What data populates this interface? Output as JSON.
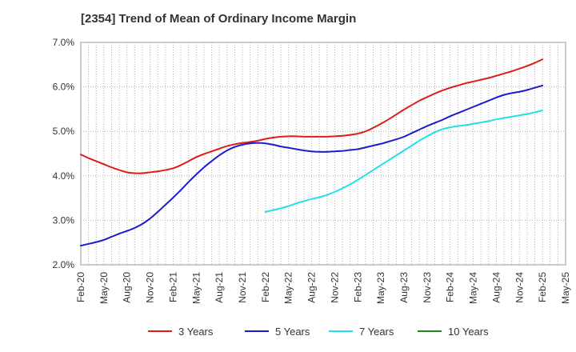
{
  "chart_data": {
    "type": "line",
    "title": "[2354]  Trend of Mean of Ordinary Income Margin",
    "xlabel": "",
    "ylabel": "",
    "ylim": [
      2.0,
      7.0
    ],
    "y_ticks": [
      "2.0%",
      "3.0%",
      "4.0%",
      "5.0%",
      "6.0%",
      "7.0%"
    ],
    "x_ticks": [
      "Feb-20",
      "May-20",
      "Aug-20",
      "Nov-20",
      "Feb-21",
      "May-21",
      "Aug-21",
      "Nov-21",
      "Feb-22",
      "May-22",
      "Aug-22",
      "Nov-22",
      "Feb-23",
      "May-23",
      "Aug-23",
      "Nov-23",
      "Feb-24",
      "May-24",
      "Aug-24",
      "Nov-24",
      "Feb-25",
      "May-25"
    ],
    "grid": true,
    "legend_position": "bottom",
    "series": [
      {
        "name": "3 Years",
        "color": "#dd1c1c",
        "points": [
          [
            "Feb-20",
            4.48
          ],
          [
            "Mar-20",
            4.4
          ],
          [
            "Apr-20",
            4.33
          ],
          [
            "May-20",
            4.26
          ],
          [
            "Jun-20",
            4.19
          ],
          [
            "Jul-20",
            4.13
          ],
          [
            "Aug-20",
            4.08
          ],
          [
            "Sep-20",
            4.06
          ],
          [
            "Oct-20",
            4.06
          ],
          [
            "Nov-20",
            4.08
          ],
          [
            "Dec-20",
            4.1
          ],
          [
            "Jan-21",
            4.13
          ],
          [
            "Feb-21",
            4.17
          ],
          [
            "Mar-21",
            4.24
          ],
          [
            "Apr-21",
            4.33
          ],
          [
            "May-21",
            4.42
          ],
          [
            "Jun-21",
            4.49
          ],
          [
            "Jul-21",
            4.55
          ],
          [
            "Aug-21",
            4.61
          ],
          [
            "Sep-21",
            4.67
          ],
          [
            "Oct-21",
            4.71
          ],
          [
            "Nov-21",
            4.74
          ],
          [
            "Dec-21",
            4.76
          ],
          [
            "Jan-22",
            4.79
          ],
          [
            "Feb-22",
            4.83
          ],
          [
            "Mar-22",
            4.86
          ],
          [
            "Apr-22",
            4.88
          ],
          [
            "May-22",
            4.89
          ],
          [
            "Jun-22",
            4.89
          ],
          [
            "Jul-22",
            4.88
          ],
          [
            "Aug-22",
            4.88
          ],
          [
            "Sep-22",
            4.88
          ],
          [
            "Oct-22",
            4.88
          ],
          [
            "Nov-22",
            4.89
          ],
          [
            "Dec-22",
            4.9
          ],
          [
            "Jan-23",
            4.92
          ],
          [
            "Feb-23",
            4.95
          ],
          [
            "Mar-23",
            5.0
          ],
          [
            "Apr-23",
            5.08
          ],
          [
            "May-23",
            5.17
          ],
          [
            "Jun-23",
            5.27
          ],
          [
            "Jul-23",
            5.38
          ],
          [
            "Aug-23",
            5.49
          ],
          [
            "Sep-23",
            5.59
          ],
          [
            "Oct-23",
            5.69
          ],
          [
            "Nov-23",
            5.77
          ],
          [
            "Dec-23",
            5.85
          ],
          [
            "Jan-24",
            5.92
          ],
          [
            "Feb-24",
            5.98
          ],
          [
            "Mar-24",
            6.03
          ],
          [
            "Apr-24",
            6.08
          ],
          [
            "May-24",
            6.12
          ],
          [
            "Jun-24",
            6.16
          ],
          [
            "Jul-24",
            6.2
          ],
          [
            "Aug-24",
            6.25
          ],
          [
            "Sep-24",
            6.3
          ],
          [
            "Oct-24",
            6.35
          ],
          [
            "Nov-24",
            6.41
          ],
          [
            "Dec-24",
            6.47
          ],
          [
            "Jan-25",
            6.54
          ],
          [
            "Feb-25",
            6.62
          ]
        ]
      },
      {
        "name": "5 Years",
        "color": "#1c1ccc",
        "points": [
          [
            "Feb-20",
            2.43
          ],
          [
            "Mar-20",
            2.47
          ],
          [
            "Apr-20",
            2.51
          ],
          [
            "May-20",
            2.56
          ],
          [
            "Jun-20",
            2.63
          ],
          [
            "Jul-20",
            2.7
          ],
          [
            "Aug-20",
            2.76
          ],
          [
            "Sep-20",
            2.83
          ],
          [
            "Oct-20",
            2.92
          ],
          [
            "Nov-20",
            3.04
          ],
          [
            "Dec-20",
            3.19
          ],
          [
            "Jan-21",
            3.35
          ],
          [
            "Feb-21",
            3.51
          ],
          [
            "Mar-21",
            3.68
          ],
          [
            "Apr-21",
            3.86
          ],
          [
            "May-21",
            4.03
          ],
          [
            "Jun-21",
            4.19
          ],
          [
            "Jul-21",
            4.33
          ],
          [
            "Aug-21",
            4.46
          ],
          [
            "Sep-21",
            4.57
          ],
          [
            "Oct-21",
            4.65
          ],
          [
            "Nov-21",
            4.7
          ],
          [
            "Dec-21",
            4.73
          ],
          [
            "Jan-22",
            4.74
          ],
          [
            "Feb-22",
            4.73
          ],
          [
            "Mar-22",
            4.7
          ],
          [
            "Apr-22",
            4.66
          ],
          [
            "May-22",
            4.63
          ],
          [
            "Jun-22",
            4.6
          ],
          [
            "Jul-22",
            4.57
          ],
          [
            "Aug-22",
            4.55
          ],
          [
            "Sep-22",
            4.54
          ],
          [
            "Oct-22",
            4.54
          ],
          [
            "Nov-22",
            4.55
          ],
          [
            "Dec-22",
            4.56
          ],
          [
            "Jan-23",
            4.58
          ],
          [
            "Feb-23",
            4.6
          ],
          [
            "Mar-23",
            4.64
          ],
          [
            "Apr-23",
            4.68
          ],
          [
            "May-23",
            4.72
          ],
          [
            "Jun-23",
            4.77
          ],
          [
            "Jul-23",
            4.82
          ],
          [
            "Aug-23",
            4.88
          ],
          [
            "Sep-23",
            4.96
          ],
          [
            "Oct-23",
            5.04
          ],
          [
            "Nov-23",
            5.12
          ],
          [
            "Dec-23",
            5.19
          ],
          [
            "Jan-24",
            5.26
          ],
          [
            "Feb-24",
            5.34
          ],
          [
            "Mar-24",
            5.41
          ],
          [
            "Apr-24",
            5.48
          ],
          [
            "May-24",
            5.55
          ],
          [
            "Jun-24",
            5.62
          ],
          [
            "Jul-24",
            5.69
          ],
          [
            "Aug-24",
            5.76
          ],
          [
            "Sep-24",
            5.82
          ],
          [
            "Oct-24",
            5.86
          ],
          [
            "Nov-24",
            5.89
          ],
          [
            "Dec-24",
            5.93
          ],
          [
            "Jan-25",
            5.98
          ],
          [
            "Feb-25",
            6.03
          ]
        ]
      },
      {
        "name": "7 Years",
        "color": "#22e0e8",
        "points": [
          [
            "Feb-22",
            3.19
          ],
          [
            "Mar-22",
            3.23
          ],
          [
            "Apr-22",
            3.27
          ],
          [
            "May-22",
            3.32
          ],
          [
            "Jun-22",
            3.38
          ],
          [
            "Jul-22",
            3.43
          ],
          [
            "Aug-22",
            3.48
          ],
          [
            "Sep-22",
            3.52
          ],
          [
            "Oct-22",
            3.57
          ],
          [
            "Nov-22",
            3.64
          ],
          [
            "Dec-22",
            3.72
          ],
          [
            "Jan-23",
            3.81
          ],
          [
            "Feb-23",
            3.91
          ],
          [
            "Mar-23",
            4.02
          ],
          [
            "Apr-23",
            4.13
          ],
          [
            "May-23",
            4.24
          ],
          [
            "Jun-23",
            4.35
          ],
          [
            "Jul-23",
            4.46
          ],
          [
            "Aug-23",
            4.57
          ],
          [
            "Sep-23",
            4.68
          ],
          [
            "Oct-23",
            4.79
          ],
          [
            "Nov-23",
            4.89
          ],
          [
            "Dec-23",
            4.98
          ],
          [
            "Jan-24",
            5.05
          ],
          [
            "Feb-24",
            5.09
          ],
          [
            "Mar-24",
            5.12
          ],
          [
            "Apr-24",
            5.14
          ],
          [
            "May-24",
            5.17
          ],
          [
            "Jun-24",
            5.2
          ],
          [
            "Jul-24",
            5.23
          ],
          [
            "Aug-24",
            5.27
          ],
          [
            "Sep-24",
            5.3
          ],
          [
            "Oct-24",
            5.33
          ],
          [
            "Nov-24",
            5.36
          ],
          [
            "Dec-24",
            5.39
          ],
          [
            "Jan-25",
            5.43
          ],
          [
            "Feb-25",
            5.47
          ]
        ]
      },
      {
        "name": "10 Years",
        "color": "#1e8a1e",
        "points": []
      }
    ]
  }
}
